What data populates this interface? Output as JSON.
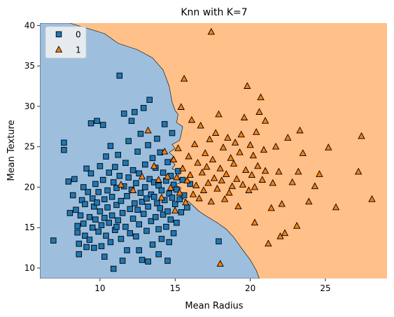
{
  "chart_data": {
    "type": "scatter",
    "title": "Knn with K=7",
    "xlabel": "Mean Radius",
    "ylabel": "Mean Texture",
    "xlim": [
      6.0,
      29.1
    ],
    "ylim": [
      8.7,
      40.3
    ],
    "xticks": [
      10,
      15,
      20,
      25
    ],
    "yticks": [
      10,
      15,
      20,
      25,
      30,
      35,
      40
    ],
    "legend": {
      "placement": "top-left",
      "entries": [
        {
          "label": "0",
          "marker": "square",
          "color": "#1f77b4"
        },
        {
          "label": "1",
          "marker": "triangle",
          "color": "#ff7f0e"
        }
      ]
    },
    "regions": {
      "class0_color": "#9dbfdd",
      "class1_color": "#ffc08a",
      "boundary": [
        [
          8.0,
          40.3
        ],
        [
          10.3,
          39.0
        ],
        [
          11.2,
          37.8
        ],
        [
          12.5,
          37.0
        ],
        [
          13.5,
          36.0
        ],
        [
          14.2,
          34.5
        ],
        [
          14.6,
          32.5
        ],
        [
          14.8,
          30.5
        ],
        [
          15.0,
          29.5
        ],
        [
          15.2,
          29.0
        ],
        [
          15.1,
          28.0
        ],
        [
          15.5,
          27.5
        ],
        [
          15.4,
          26.5
        ],
        [
          15.3,
          25.8
        ],
        [
          14.8,
          25.3
        ],
        [
          15.0,
          24.8
        ],
        [
          14.6,
          24.3
        ],
        [
          14.9,
          23.8
        ],
        [
          14.7,
          23.4
        ],
        [
          15.0,
          22.8
        ],
        [
          14.8,
          22.3
        ],
        [
          15.3,
          21.8
        ],
        [
          15.2,
          21.2
        ],
        [
          15.6,
          20.7
        ],
        [
          15.0,
          20.3
        ],
        [
          15.4,
          19.9
        ],
        [
          15.2,
          19.3
        ],
        [
          15.4,
          18.7
        ],
        [
          15.9,
          18.2
        ],
        [
          16.2,
          17.7
        ],
        [
          16.6,
          17.0
        ],
        [
          17.1,
          16.4
        ],
        [
          17.8,
          15.6
        ],
        [
          18.4,
          14.8
        ],
        [
          18.9,
          13.8
        ],
        [
          19.4,
          12.5
        ],
        [
          20.0,
          11.0
        ],
        [
          20.4,
          9.7
        ],
        [
          20.6,
          8.7
        ]
      ]
    },
    "series": [
      {
        "name": "0",
        "marker": "square",
        "points": [
          [
            6.9,
            13.4
          ],
          [
            7.6,
            25.5
          ],
          [
            7.6,
            24.6
          ],
          [
            7.9,
            20.7
          ],
          [
            8.0,
            16.8
          ],
          [
            8.2,
            19.0
          ],
          [
            8.3,
            21.0
          ],
          [
            8.4,
            17.2
          ],
          [
            8.5,
            15.2
          ],
          [
            8.5,
            14.4
          ],
          [
            8.6,
            13.0
          ],
          [
            8.6,
            11.7
          ],
          [
            8.7,
            16.5
          ],
          [
            8.8,
            18.4
          ],
          [
            8.9,
            20.0
          ],
          [
            8.9,
            15.5
          ],
          [
            9.0,
            17.9
          ],
          [
            9.0,
            14.0
          ],
          [
            9.1,
            22.3
          ],
          [
            9.2,
            19.4
          ],
          [
            9.3,
            16.3
          ],
          [
            9.3,
            13.5
          ],
          [
            9.4,
            21.7
          ],
          [
            9.4,
            27.9
          ],
          [
            9.5,
            18.6
          ],
          [
            9.5,
            15.0
          ],
          [
            9.6,
            17.6
          ],
          [
            9.6,
            12.5
          ],
          [
            9.7,
            20.4
          ],
          [
            9.7,
            16.0
          ],
          [
            9.8,
            28.2
          ],
          [
            9.8,
            18.1
          ],
          [
            9.9,
            19.4
          ],
          [
            9.9,
            14.5
          ],
          [
            10.0,
            22.6
          ],
          [
            10.0,
            17.0
          ],
          [
            10.1,
            15.3
          ],
          [
            10.1,
            12.7
          ],
          [
            10.2,
            27.7
          ],
          [
            10.2,
            20.9
          ],
          [
            10.3,
            18.5
          ],
          [
            10.3,
            16.2
          ],
          [
            10.4,
            23.8
          ],
          [
            10.4,
            14.0
          ],
          [
            10.5,
            19.6
          ],
          [
            10.5,
            17.5
          ],
          [
            10.6,
            21.8
          ],
          [
            10.6,
            15.6
          ],
          [
            10.7,
            25.1
          ],
          [
            10.7,
            13.2
          ],
          [
            10.8,
            18.8
          ],
          [
            10.8,
            16.5
          ],
          [
            10.9,
            9.9
          ],
          [
            10.9,
            20.6
          ],
          [
            11.0,
            22.5
          ],
          [
            11.0,
            14.7
          ],
          [
            11.1,
            17.8
          ],
          [
            11.1,
            19.9
          ],
          [
            11.2,
            24.0
          ],
          [
            11.2,
            15.9
          ],
          [
            11.3,
            33.8
          ],
          [
            11.3,
            21.4
          ],
          [
            11.4,
            18.3
          ],
          [
            11.4,
            13.6
          ],
          [
            11.5,
            10.9
          ],
          [
            11.5,
            16.8
          ],
          [
            11.6,
            29.1
          ],
          [
            11.6,
            20.1
          ],
          [
            11.7,
            23.0
          ],
          [
            11.7,
            15.1
          ],
          [
            11.8,
            18.9
          ],
          [
            11.8,
            12.2
          ],
          [
            11.9,
            25.7
          ],
          [
            11.9,
            21.2
          ],
          [
            12.0,
            17.3
          ],
          [
            12.0,
            14.3
          ],
          [
            12.1,
            28.2
          ],
          [
            12.1,
            19.7
          ],
          [
            12.2,
            22.1
          ],
          [
            12.2,
            16.1
          ],
          [
            12.3,
            29.3
          ],
          [
            12.3,
            18.0
          ],
          [
            12.4,
            20.5
          ],
          [
            12.4,
            13.9
          ],
          [
            12.5,
            24.4
          ],
          [
            12.5,
            17.2
          ],
          [
            12.6,
            21.7
          ],
          [
            12.6,
            15.4
          ],
          [
            12.7,
            26.6
          ],
          [
            12.7,
            19.3
          ],
          [
            12.8,
            18.2
          ],
          [
            12.8,
            11.0
          ],
          [
            12.9,
            29.8
          ],
          [
            12.9,
            16.7
          ],
          [
            13.0,
            22.8
          ],
          [
            13.0,
            20.0
          ],
          [
            13.1,
            14.6
          ],
          [
            13.1,
            18.6
          ],
          [
            13.2,
            25.2
          ],
          [
            13.2,
            17.6
          ],
          [
            13.3,
            30.8
          ],
          [
            13.3,
            21.0
          ],
          [
            13.4,
            19.1
          ],
          [
            13.4,
            15.8
          ],
          [
            13.5,
            23.6
          ],
          [
            13.5,
            12.9
          ],
          [
            13.6,
            18.8
          ],
          [
            13.6,
            20.6
          ],
          [
            13.7,
            16.3
          ],
          [
            13.7,
            22.4
          ],
          [
            13.8,
            26.0
          ],
          [
            13.8,
            18.0
          ],
          [
            13.9,
            20.2
          ],
          [
            13.9,
            14.8
          ],
          [
            14.0,
            17.4
          ],
          [
            14.0,
            24.3
          ],
          [
            14.1,
            19.6
          ],
          [
            14.1,
            13.6
          ],
          [
            14.2,
            21.8
          ],
          [
            14.2,
            16.6
          ],
          [
            14.3,
            27.8
          ],
          [
            14.3,
            18.4
          ],
          [
            14.4,
            20.8
          ],
          [
            14.4,
            15.1
          ],
          [
            14.5,
            23.1
          ],
          [
            14.5,
            17.0
          ],
          [
            14.6,
            19.2
          ],
          [
            14.6,
            13.2
          ],
          [
            14.7,
            21.4
          ],
          [
            14.7,
            16.0
          ],
          [
            14.8,
            18.7
          ],
          [
            14.8,
            26.7
          ],
          [
            14.9,
            20.3
          ],
          [
            14.9,
            14.3
          ],
          [
            15.0,
            17.9
          ],
          [
            15.1,
            19.7
          ],
          [
            15.1,
            15.6
          ],
          [
            15.2,
            22.0
          ],
          [
            15.3,
            18.5
          ],
          [
            15.4,
            16.9
          ],
          [
            15.5,
            20.9
          ],
          [
            15.6,
            19.0
          ],
          [
            15.8,
            17.5
          ],
          [
            16.0,
            20.4
          ],
          [
            17.9,
            13.3
          ],
          [
            13.2,
            10.8
          ],
          [
            14.5,
            10.9
          ],
          [
            11.1,
            15.1
          ],
          [
            12.6,
            12.2
          ],
          [
            10.3,
            11.4
          ],
          [
            9.1,
            12.6
          ],
          [
            13.9,
            11.7
          ]
        ]
      },
      {
        "name": "1",
        "marker": "triangle",
        "points": [
          [
            11.4,
            20.3
          ],
          [
            12.2,
            19.6
          ],
          [
            12.8,
            21.3
          ],
          [
            13.2,
            27.0
          ],
          [
            13.6,
            22.6
          ],
          [
            13.9,
            20.9
          ],
          [
            14.1,
            18.7
          ],
          [
            14.3,
            24.4
          ],
          [
            14.5,
            21.3
          ],
          [
            14.7,
            19.9
          ],
          [
            14.9,
            23.4
          ],
          [
            15.0,
            17.1
          ],
          [
            15.1,
            21.2
          ],
          [
            15.2,
            24.8
          ],
          [
            15.3,
            19.3
          ],
          [
            15.4,
            29.9
          ],
          [
            15.5,
            22.3
          ],
          [
            15.6,
            33.4
          ],
          [
            15.7,
            18.1
          ],
          [
            15.8,
            20.8
          ],
          [
            15.9,
            23.8
          ],
          [
            16.0,
            21.5
          ],
          [
            16.1,
            28.3
          ],
          [
            16.2,
            19.1
          ],
          [
            16.3,
            25.3
          ],
          [
            16.4,
            20.2
          ],
          [
            16.5,
            23.0
          ],
          [
            16.6,
            18.6
          ],
          [
            16.7,
            27.6
          ],
          [
            16.8,
            21.8
          ],
          [
            16.9,
            19.6
          ],
          [
            17.0,
            24.2
          ],
          [
            17.1,
            22.5
          ],
          [
            17.2,
            20.5
          ],
          [
            17.3,
            25.9
          ],
          [
            17.4,
            39.2
          ],
          [
            17.4,
            18.2
          ],
          [
            17.5,
            23.4
          ],
          [
            17.6,
            21.1
          ],
          [
            17.7,
            26.7
          ],
          [
            17.8,
            19.8
          ],
          [
            17.9,
            29.0
          ],
          [
            18.0,
            10.5
          ],
          [
            18.0,
            22.3
          ],
          [
            18.1,
            20.8
          ],
          [
            18.2,
            24.9
          ],
          [
            18.3,
            18.5
          ],
          [
            18.4,
            21.6
          ],
          [
            18.5,
            26.1
          ],
          [
            18.6,
            19.3
          ],
          [
            18.7,
            23.6
          ],
          [
            18.8,
            20.1
          ],
          [
            18.9,
            22.9
          ],
          [
            19.0,
            25.5
          ],
          [
            19.1,
            21.0
          ],
          [
            19.2,
            17.6
          ],
          [
            19.3,
            24.3
          ],
          [
            19.4,
            26.5
          ],
          [
            19.5,
            20.3
          ],
          [
            19.6,
            28.6
          ],
          [
            19.7,
            22.1
          ],
          [
            19.8,
            32.5
          ],
          [
            19.9,
            19.6
          ],
          [
            20.0,
            25.2
          ],
          [
            20.1,
            21.5
          ],
          [
            20.2,
            23.9
          ],
          [
            20.3,
            20.0
          ],
          [
            20.4,
            26.8
          ],
          [
            20.5,
            22.6
          ],
          [
            20.6,
            29.3
          ],
          [
            20.7,
            31.1
          ],
          [
            20.8,
            20.9
          ],
          [
            20.9,
            24.6
          ],
          [
            21.0,
            22.0
          ],
          [
            21.2,
            13.0
          ],
          [
            21.4,
            17.4
          ],
          [
            21.5,
            20.5
          ],
          [
            21.7,
            25.0
          ],
          [
            21.9,
            21.9
          ],
          [
            22.1,
            17.9
          ],
          [
            22.3,
            14.3
          ],
          [
            22.5,
            26.1
          ],
          [
            22.8,
            20.6
          ],
          [
            23.1,
            15.2
          ],
          [
            23.3,
            27.0
          ],
          [
            23.5,
            24.2
          ],
          [
            23.9,
            18.2
          ],
          [
            24.3,
            20.1
          ],
          [
            24.6,
            21.6
          ],
          [
            25.2,
            24.9
          ],
          [
            25.7,
            17.5
          ],
          [
            27.2,
            21.9
          ],
          [
            27.4,
            26.3
          ],
          [
            28.1,
            18.5
          ],
          [
            23.2,
            21.9
          ],
          [
            22.0,
            13.9
          ],
          [
            21.0,
            28.2
          ],
          [
            20.3,
            15.6
          ]
        ]
      }
    ]
  }
}
